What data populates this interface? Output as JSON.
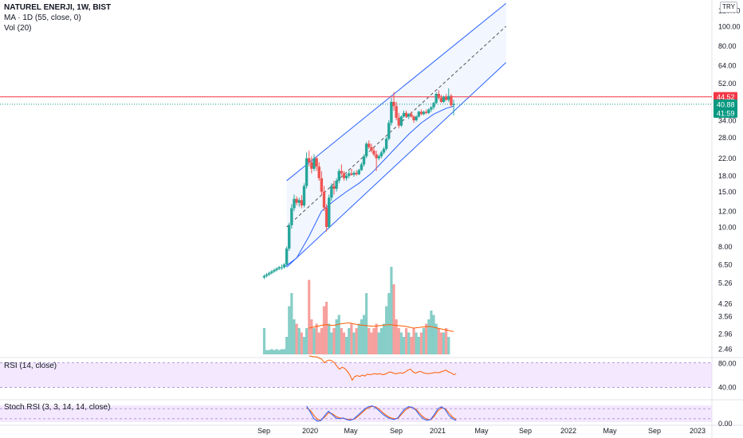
{
  "header": {
    "symbol_line": "NATUREL ENERJI, 1W, BIST",
    "ma_line": "MA · 1D (55, close, 0)",
    "vol_line": "Vol (20)"
  },
  "currency_button": "TRY",
  "price_axis": {
    "ticks": [
      "120.00",
      "100.00",
      "80.00",
      "64.00",
      "52.00",
      "40.88",
      "34.00",
      "28.00",
      "22.00",
      "18.00",
      "15.00",
      "12.00",
      "10.00",
      "8.00",
      "6.50",
      "5.26",
      "4.26",
      "3.56",
      "2.96",
      "2.46"
    ],
    "badges": [
      {
        "label": "44.52",
        "color": "#f23645"
      },
      {
        "label": "40.88",
        "color": "#089981"
      },
      {
        "label": "41:59",
        "color": "#089981"
      }
    ]
  },
  "time_axis": {
    "labels": [
      "Sep",
      "2020",
      "May",
      "Sep",
      "2021",
      "May",
      "Sep",
      "2022",
      "May",
      "Sep",
      "2023"
    ]
  },
  "rsi": {
    "label": "RSI (14, close)",
    "ticks": [
      "80.00",
      "40.00"
    ]
  },
  "stoch": {
    "label": "Stoch RSI (3, 3, 14, 14, close)",
    "ticks": [
      "0.00"
    ]
  },
  "colors": {
    "up": "#26a69a",
    "down": "#ef5350",
    "channel": "#2962ff",
    "ma": "#2962ff",
    "hline": "#f23645",
    "rsi": "#ff5d00",
    "band": "#e9d6fb",
    "stoch_k": "#2962ff",
    "stoch_d": "#ff5d00"
  },
  "chart_data": [
    {
      "type": "candlestick",
      "scale": "log",
      "ylim": [
        5.0,
        120.0
      ],
      "x_range": [
        "2019-08",
        "2023-01"
      ],
      "candles": [
        [
          "2019-09-02",
          5.6,
          5.8,
          5.5,
          5.7
        ],
        [
          "2019-09-09",
          5.7,
          5.9,
          5.6,
          5.8
        ],
        [
          "2019-09-16",
          5.8,
          6.0,
          5.7,
          5.9
        ],
        [
          "2019-09-23",
          5.9,
          6.1,
          5.8,
          6.0
        ],
        [
          "2019-09-30",
          6.0,
          6.2,
          5.9,
          6.1
        ],
        [
          "2019-10-07",
          6.1,
          6.3,
          6.0,
          6.2
        ],
        [
          "2019-10-14",
          6.2,
          6.4,
          6.1,
          6.3
        ],
        [
          "2019-10-21",
          6.3,
          6.5,
          6.1,
          6.3
        ],
        [
          "2019-10-28",
          6.3,
          6.6,
          6.2,
          6.5
        ],
        [
          "2019-11-04",
          6.5,
          8.0,
          6.4,
          7.8
        ],
        [
          "2019-11-11",
          7.8,
          10.5,
          7.6,
          10.2
        ],
        [
          "2019-11-18",
          10.2,
          13.0,
          9.8,
          12.4
        ],
        [
          "2019-11-25",
          12.4,
          14.5,
          12.0,
          13.8
        ],
        [
          "2019-12-02",
          13.8,
          14.2,
          12.8,
          13.2
        ],
        [
          "2019-12-09",
          13.2,
          14.0,
          12.6,
          13.6
        ],
        [
          "2019-12-16",
          13.6,
          14.4,
          12.4,
          12.8
        ],
        [
          "2019-12-23",
          12.8,
          16.5,
          12.5,
          16.0
        ],
        [
          "2019-12-30",
          16.0,
          23.5,
          15.5,
          22.0
        ],
        [
          "2020-01-06",
          22.0,
          24.0,
          20.0,
          21.0
        ],
        [
          "2020-01-13",
          21.0,
          22.5,
          18.5,
          19.5
        ],
        [
          "2020-01-20",
          19.5,
          23.0,
          19.0,
          22.0
        ],
        [
          "2020-01-27",
          22.0,
          22.5,
          19.0,
          20.0
        ],
        [
          "2020-02-03",
          20.0,
          21.0,
          17.0,
          17.5
        ],
        [
          "2020-02-10",
          17.5,
          19.0,
          14.5,
          15.0
        ],
        [
          "2020-02-17",
          15.0,
          16.0,
          12.0,
          12.5
        ],
        [
          "2020-02-24",
          12.5,
          13.0,
          9.5,
          10.0
        ],
        [
          "2020-03-02",
          10.0,
          14.5,
          9.8,
          14.0
        ],
        [
          "2020-03-09",
          14.0,
          16.5,
          13.5,
          16.0
        ],
        [
          "2020-03-16",
          16.0,
          17.0,
          14.5,
          15.5
        ],
        [
          "2020-03-23",
          15.5,
          17.5,
          15.0,
          17.0
        ],
        [
          "2020-03-30",
          17.0,
          19.5,
          16.5,
          19.0
        ],
        [
          "2020-04-06",
          19.0,
          20.5,
          18.0,
          18.5
        ],
        [
          "2020-04-13",
          18.5,
          19.0,
          17.0,
          17.5
        ],
        [
          "2020-04-20",
          17.5,
          18.5,
          17.0,
          18.0
        ],
        [
          "2020-04-27",
          18.0,
          19.0,
          17.5,
          18.5
        ],
        [
          "2020-05-04",
          18.5,
          19.5,
          18.0,
          18.2
        ],
        [
          "2020-05-11",
          18.2,
          19.0,
          17.8,
          18.6
        ],
        [
          "2020-05-18",
          18.6,
          19.2,
          18.0,
          18.3
        ],
        [
          "2020-05-25",
          18.3,
          19.5,
          18.1,
          19.2
        ],
        [
          "2020-06-01",
          19.2,
          21.0,
          19.0,
          20.5
        ],
        [
          "2020-06-08",
          20.5,
          23.0,
          20.0,
          22.5
        ],
        [
          "2020-06-15",
          22.5,
          26.5,
          22.0,
          26.0
        ],
        [
          "2020-06-22",
          26.0,
          27.0,
          24.5,
          25.0
        ],
        [
          "2020-06-29",
          25.0,
          26.0,
          23.5,
          24.0
        ],
        [
          "2020-07-06",
          24.0,
          25.0,
          22.5,
          23.0
        ],
        [
          "2020-07-13",
          23.0,
          24.0,
          19.0,
          22.0
        ],
        [
          "2020-07-20",
          22.0,
          23.0,
          21.5,
          22.5
        ],
        [
          "2020-07-27",
          22.5,
          24.0,
          22.0,
          23.5
        ],
        [
          "2020-08-03",
          23.5,
          25.0,
          23.0,
          24.5
        ],
        [
          "2020-08-10",
          24.5,
          28.0,
          24.0,
          27.5
        ],
        [
          "2020-08-17",
          27.5,
          34.0,
          27.0,
          33.0
        ],
        [
          "2020-08-24",
          33.0,
          44.0,
          32.0,
          42.0
        ],
        [
          "2020-08-31",
          42.0,
          47.0,
          38.0,
          40.0
        ],
        [
          "2020-09-07",
          40.0,
          42.0,
          34.0,
          35.0
        ],
        [
          "2020-09-14",
          35.0,
          37.0,
          31.0,
          32.0
        ],
        [
          "2020-09-21",
          32.0,
          36.0,
          31.5,
          35.5
        ],
        [
          "2020-09-28",
          35.5,
          38.0,
          35.0,
          37.0
        ],
        [
          "2020-10-05",
          37.0,
          38.0,
          35.0,
          35.5
        ],
        [
          "2020-10-12",
          35.5,
          37.0,
          34.5,
          36.5
        ],
        [
          "2020-10-19",
          36.5,
          37.5,
          35.0,
          35.5
        ],
        [
          "2020-10-26",
          35.5,
          36.0,
          33.0,
          34.0
        ],
        [
          "2020-11-02",
          34.0,
          36.0,
          33.5,
          35.5
        ],
        [
          "2020-11-09",
          35.5,
          38.0,
          35.0,
          37.5
        ],
        [
          "2020-11-16",
          37.5,
          38.5,
          36.0,
          36.5
        ],
        [
          "2020-11-23",
          36.5,
          38.0,
          36.0,
          37.5
        ],
        [
          "2020-11-30",
          37.5,
          38.5,
          36.5,
          37.0
        ],
        [
          "2020-12-07",
          37.0,
          39.0,
          36.5,
          38.5
        ],
        [
          "2020-12-14",
          38.5,
          40.0,
          37.5,
          39.5
        ],
        [
          "2020-12-21",
          39.5,
          42.0,
          38.5,
          41.5
        ],
        [
          "2020-12-28",
          41.5,
          47.0,
          41.0,
          46.0
        ],
        [
          "2021-01-04",
          46.0,
          48.0,
          43.0,
          44.0
        ],
        [
          "2021-01-11",
          44.0,
          45.5,
          41.5,
          42.0
        ],
        [
          "2021-01-18",
          42.0,
          45.0,
          41.5,
          44.5
        ],
        [
          "2021-01-25",
          44.5,
          46.0,
          42.5,
          43.0
        ],
        [
          "2021-02-01",
          43.0,
          49.0,
          42.0,
          45.0
        ],
        [
          "2021-02-08",
          45.0,
          46.0,
          39.5,
          40.5
        ],
        [
          "2021-02-15",
          40.5,
          43.0,
          36.0,
          41.0
        ]
      ]
    },
    {
      "type": "line",
      "name": "MA · 1D (55, close, 0)",
      "scale": "log",
      "x": [
        "2019-10-28",
        "2019-12-02",
        "2020-01-06",
        "2020-02-10",
        "2020-03-16",
        "2020-04-20",
        "2020-05-25",
        "2020-06-29",
        "2020-08-03",
        "2020-09-07",
        "2020-10-12",
        "2020-11-16",
        "2020-12-21",
        "2021-01-25",
        "2021-02-15"
      ],
      "y": [
        6.3,
        7.0,
        9.0,
        12.0,
        13.5,
        15.0,
        16.5,
        18.5,
        21.5,
        25.0,
        29.0,
        33.0,
        36.5,
        39.0,
        40.0
      ]
    },
    {
      "type": "channel",
      "scale": "log",
      "start": "2019-11-04",
      "end": "2021-07-12",
      "upper": [
        17.0,
        130.0
      ],
      "mid": [
        10.0,
        100.0
      ],
      "lower": [
        6.3,
        66.0
      ]
    },
    {
      "type": "hline",
      "value": 44.52
    },
    {
      "type": "bar",
      "name": "Vol (20)",
      "values": [
        0.3,
        0.05,
        0.05,
        0.06,
        0.05,
        0.06,
        0.05,
        0.06,
        0.06,
        0.2,
        0.55,
        0.7,
        0.4,
        0.35,
        0.3,
        0.25,
        0.2,
        0.3,
        0.85,
        0.4,
        0.3,
        0.35,
        0.25,
        0.3,
        0.55,
        0.6,
        0.35,
        0.25,
        0.3,
        0.4,
        0.45,
        0.3,
        0.25,
        0.2,
        0.3,
        0.35,
        0.25,
        0.3,
        0.35,
        0.4,
        0.45,
        0.7,
        0.3,
        0.25,
        0.3,
        0.35,
        0.25,
        0.3,
        0.35,
        0.55,
        0.7,
        1.0,
        0.8,
        0.4,
        0.3,
        0.25,
        0.2,
        0.3,
        0.25,
        0.2,
        0.3,
        0.25,
        0.2,
        0.25,
        0.3,
        0.35,
        0.4,
        0.5,
        0.45,
        0.35,
        0.3,
        0.25,
        0.25,
        0.3,
        0.2
      ],
      "ma_line": [
        0.3,
        0.32,
        0.34,
        0.33,
        0.35,
        0.36,
        0.34,
        0.33,
        0.32,
        0.33,
        0.34,
        0.33,
        0.32,
        0.3,
        0.31,
        0.32,
        0.3,
        0.28,
        0.26
      ]
    },
    {
      "type": "line",
      "name": "RSI (14, close)",
      "ylim": [
        20,
        100
      ],
      "y": [
        95,
        94,
        93,
        93,
        90,
        88,
        80,
        84,
        86,
        84,
        80,
        72,
        66,
        70,
        68,
        62,
        54,
        42,
        50,
        52,
        50,
        53,
        51,
        55,
        54,
        55,
        56,
        55,
        56,
        54,
        55,
        58,
        60,
        58,
        56,
        57,
        58,
        57,
        60,
        64,
        66,
        60,
        57,
        60,
        61,
        58,
        57,
        56,
        57,
        58,
        59,
        58,
        60,
        62,
        64,
        60,
        58,
        54,
        56
      ]
    },
    {
      "type": "line",
      "name": "Stoch RSI (3, 3, 14, 14, close)",
      "ylim": [
        0,
        100
      ],
      "k": [
        95,
        60,
        20,
        5,
        10,
        40,
        65,
        45,
        25,
        20,
        25,
        15,
        10,
        20,
        40,
        60,
        80,
        92,
        97,
        85,
        65,
        45,
        30,
        20,
        15,
        25,
        55,
        80,
        92,
        88,
        70,
        40,
        20,
        10,
        15,
        45,
        80,
        92,
        75,
        40,
        20,
        10
      ],
      "d": [
        85,
        70,
        40,
        15,
        12,
        30,
        55,
        50,
        35,
        25,
        22,
        18,
        14,
        18,
        32,
        52,
        72,
        86,
        94,
        90,
        75,
        55,
        38,
        26,
        20,
        22,
        45,
        70,
        86,
        88,
        76,
        52,
        30,
        16,
        14,
        35,
        68,
        86,
        80,
        55,
        30,
        15
      ]
    }
  ]
}
